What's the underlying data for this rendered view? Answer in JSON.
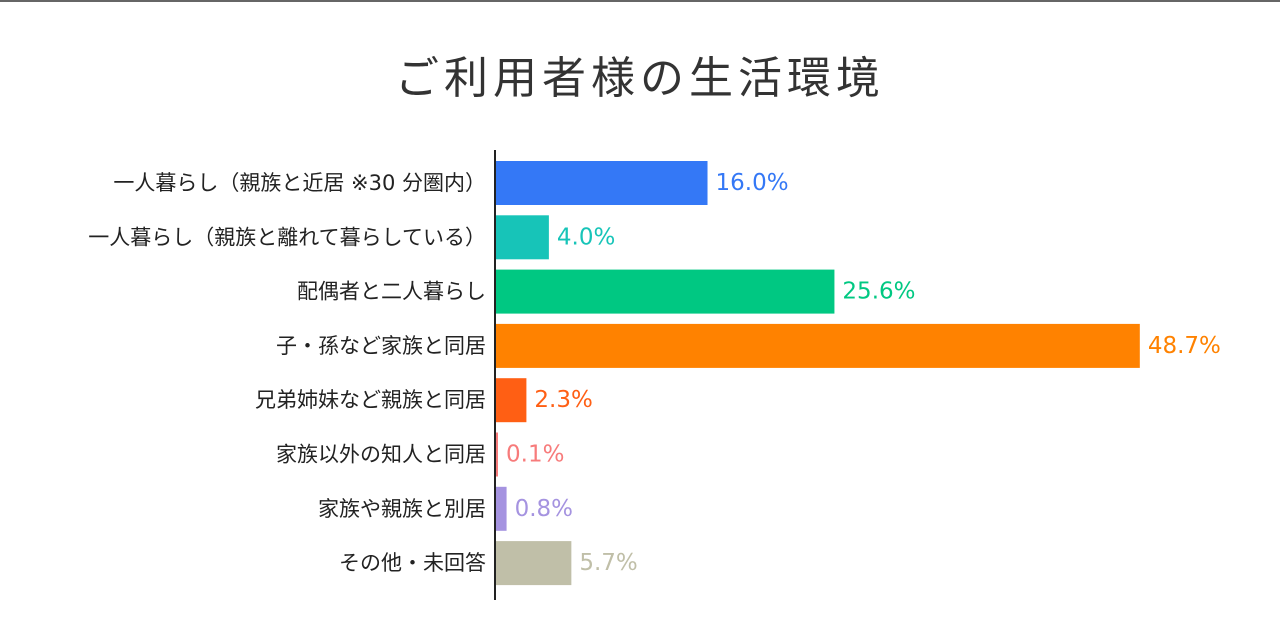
{
  "chart_data": {
    "type": "bar",
    "orientation": "horizontal",
    "title": "ご利用者様の生活環境",
    "unit": "%",
    "categories": [
      "一人暮らし（親族と近居 ※30 分圏内）",
      "一人暮らし（親族と離れて暮らしている）",
      "配偶者と二人暮らし",
      "子・孫など家族と同居",
      "兄弟姉妹など親族と同居",
      "家族以外の知人と同居",
      "家族や親族と別居",
      "その他・未回答"
    ],
    "values": [
      16.0,
      4.0,
      25.6,
      48.7,
      2.3,
      0.1,
      0.8,
      5.7
    ],
    "value_labels": [
      "16.0%",
      "4.0%",
      "25.6%",
      "48.7%",
      "2.3%",
      "0.1%",
      "0.8%",
      "5.7%"
    ],
    "colors": [
      "#3478f6",
      "#17c4b8",
      "#00c882",
      "#ff8200",
      "#ff5f14",
      "#f77b7b",
      "#a593e0",
      "#c0bfa8"
    ],
    "xlim": [
      0,
      50
    ],
    "grid": false,
    "legend": "none"
  }
}
